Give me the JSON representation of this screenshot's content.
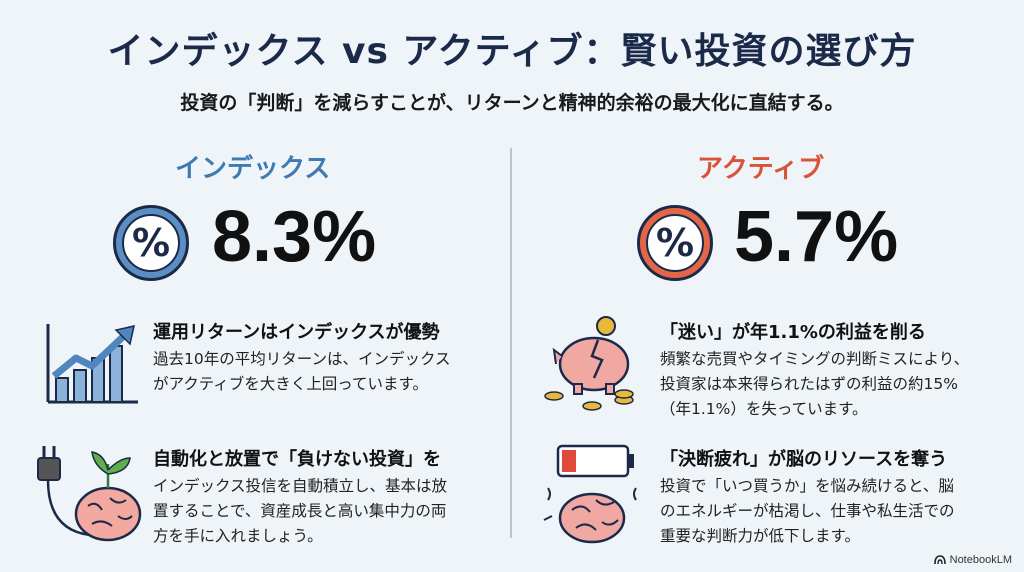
{
  "title": "インデックス vs アクティブ：賢い投資の選び方",
  "subtitle": "投資の「判断」を減らすことが、リターンと精神的余裕の最大化に直結する。",
  "left": {
    "heading": "インデックス",
    "rate": "8.3%",
    "items": [
      {
        "title": "運用リターンはインデックスが優勢",
        "body": "過去10年の平均リターンは、インデックス\nがアクティブを大きく上回っています。",
        "icon": "bar-chart-up-icon"
      },
      {
        "title": "自動化と放置で「負けない投資」を",
        "body": "インデックス投信を自動積立し、基本は放\n置することで、資産成長と高い集中力の両\n方を手に入れましょう。",
        "icon": "brain-plug-plant-icon"
      }
    ]
  },
  "right": {
    "heading": "アクティブ",
    "rate": "5.7%",
    "items": [
      {
        "title": "「迷い」が年1.1%の利益を削る",
        "body": "頻繁な売買やタイミングの判断ミスにより、\n投資家は本来得られたはずの利益の約15%\n（年1.1%）を失っています。",
        "icon": "broken-piggy-bank-icon"
      },
      {
        "title": "「決断疲れ」が脳のリソースを奪う",
        "body": "投資で「いつ買うか」を悩み続けると、脳\nのエネルギーが枯渇し、仕事や私生活での\n重要な判断力が低下します。",
        "icon": "low-battery-brain-icon"
      }
    ]
  },
  "footer": "NotebookLM",
  "colors": {
    "index_blue": "#3f7bb0",
    "active_red": "#d9533a",
    "background": "#eef4f8"
  }
}
